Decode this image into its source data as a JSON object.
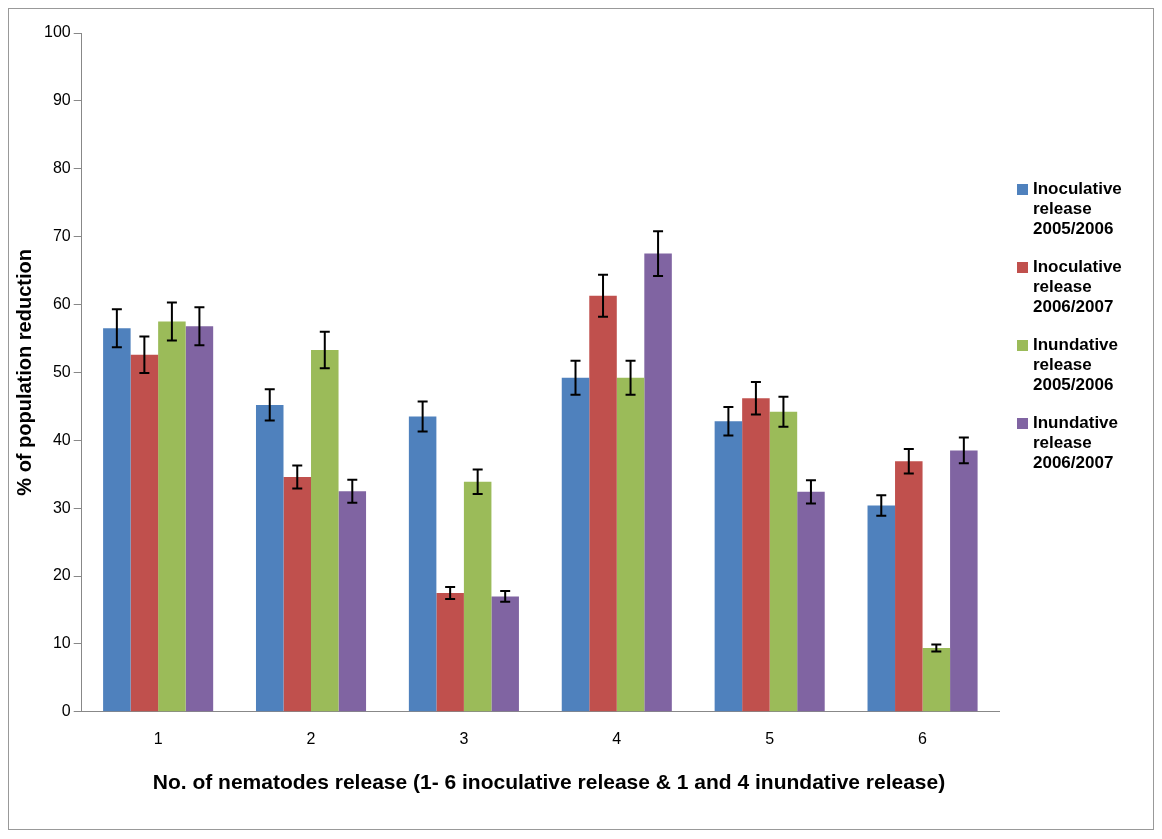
{
  "chart_data": {
    "type": "bar",
    "xlabel": "No. of nematodes release (1- 6 inoculative release & 1 and 4 inundative release)",
    "ylabel": "% of population reduction",
    "categories": [
      "1",
      "2",
      "3",
      "4",
      "5",
      "6"
    ],
    "series": [
      {
        "name": "Inoculative release 2005/2006",
        "color": "#4f81bd",
        "values": [
          56.5,
          45.2,
          43.5,
          49.2,
          42.8,
          30.4
        ],
        "errors": [
          2.8,
          2.3,
          2.2,
          2.5,
          2.1,
          1.5
        ]
      },
      {
        "name": "Inoculative release 2006/2007",
        "color": "#c0504d",
        "values": [
          52.6,
          34.6,
          17.5,
          61.3,
          46.2,
          36.9
        ],
        "errors": [
          2.7,
          1.7,
          0.9,
          3.1,
          2.4,
          1.8
        ]
      },
      {
        "name": "Inundative release 2005/2006",
        "color": "#9bbb59",
        "values": [
          57.5,
          53.3,
          33.9,
          49.2,
          44.2,
          9.4
        ],
        "errors": [
          2.8,
          2.7,
          1.8,
          2.5,
          2.2,
          0.5
        ]
      },
      {
        "name": "Inundative release 2006/2007",
        "color": "#8064a2",
        "values": [
          56.8,
          32.5,
          17.0,
          67.5,
          32.4,
          38.5
        ],
        "errors": [
          2.8,
          1.7,
          0.8,
          3.3,
          1.7,
          1.9
        ]
      }
    ],
    "ylim": [
      0,
      100
    ],
    "yticks": [
      0,
      10,
      20,
      30,
      40,
      50,
      60,
      70,
      80,
      90,
      100
    ],
    "grid": false,
    "legend": "right"
  }
}
